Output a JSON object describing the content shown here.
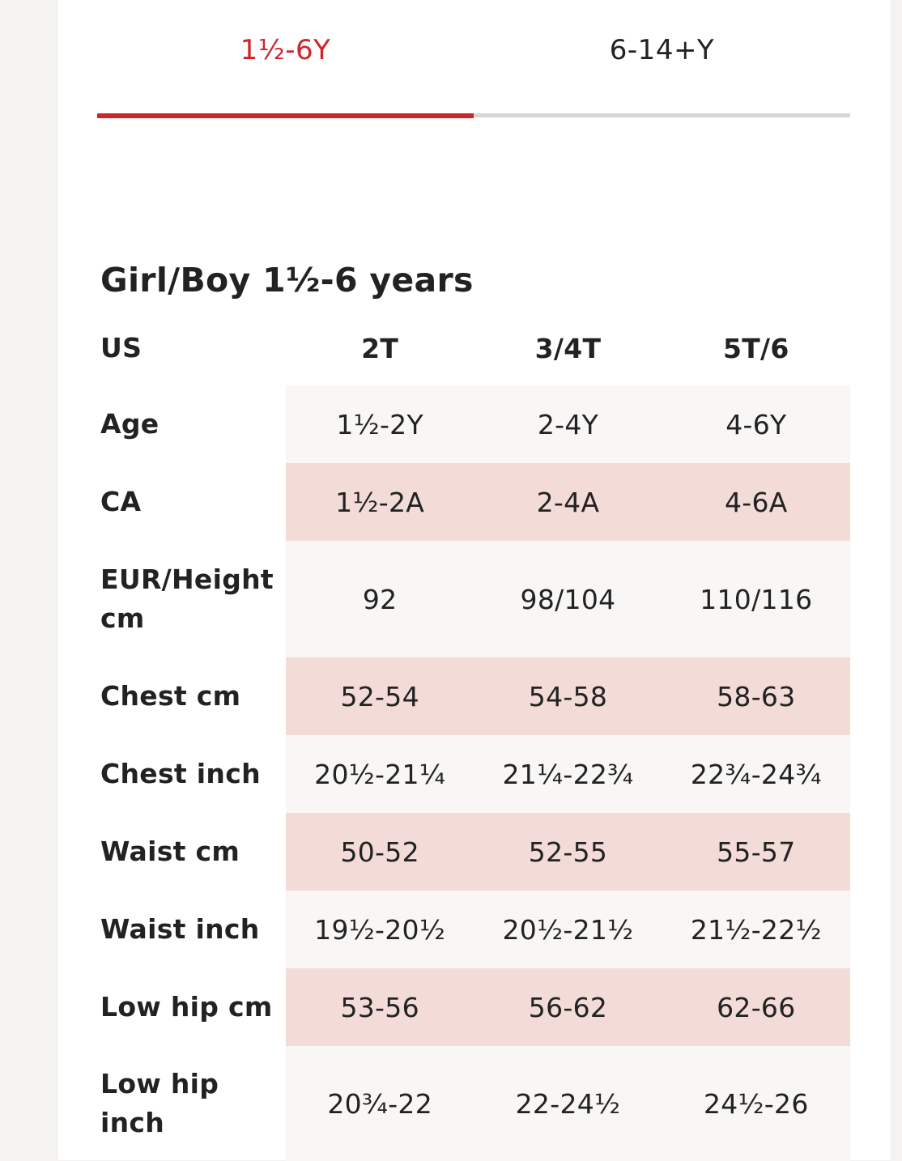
{
  "tabs": [
    {
      "label": "1½-6Y",
      "active": true
    },
    {
      "label": "6-14+Y",
      "active": false
    }
  ],
  "colors": {
    "accent": "#d1232a",
    "row_highlight": "#f3dbd7",
    "row_plain": "#f8f7f6",
    "tab_inactive_line": "#d6d6d6"
  },
  "section": {
    "title": "Girl/Boy 1½-6 years"
  },
  "table": {
    "header": {
      "label": "US",
      "values": [
        "2T",
        "3/4T",
        "5T/6"
      ]
    },
    "rows": [
      {
        "label": "Age",
        "values": [
          "1½-2Y",
          "2-4Y",
          "4-6Y"
        ]
      },
      {
        "label": "CA",
        "values": [
          "1½-2A",
          "2-4A",
          "4-6A"
        ]
      },
      {
        "label": "EUR/Height cm",
        "values": [
          "92",
          "98/104",
          "110/116"
        ]
      },
      {
        "label": "Chest cm",
        "values": [
          "52-54",
          "54-58",
          "58-63"
        ]
      },
      {
        "label": "Chest inch",
        "values": [
          "20½-21¼",
          "21¼-22¾",
          "22¾-24¾"
        ]
      },
      {
        "label": "Waist cm",
        "values": [
          "50-52",
          "52-55",
          "55-57"
        ]
      },
      {
        "label": "Waist inch",
        "values": [
          "19½-20½",
          "20½-21½",
          "21½-22½"
        ]
      },
      {
        "label": "Low hip cm",
        "values": [
          "53-56",
          "56-62",
          "62-66"
        ]
      },
      {
        "label": "Low hip inch",
        "values": [
          "20¾-22",
          "22-24½",
          "24½-26"
        ]
      }
    ]
  }
}
